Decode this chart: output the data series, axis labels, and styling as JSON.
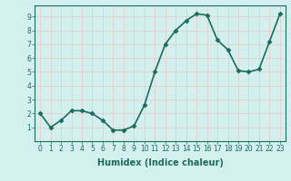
{
  "x": [
    0,
    1,
    2,
    3,
    4,
    5,
    6,
    7,
    8,
    9,
    10,
    11,
    12,
    13,
    14,
    15,
    16,
    17,
    18,
    19,
    20,
    21,
    22,
    23
  ],
  "y": [
    2,
    1,
    1.5,
    2.2,
    2.2,
    2,
    1.5,
    0.8,
    0.8,
    1.1,
    2.6,
    5,
    7,
    8,
    8.7,
    9.2,
    9.1,
    7.3,
    6.6,
    5.1,
    5,
    5.2,
    7.2,
    9.2
  ],
  "line_color": "#1a6b5e",
  "marker": "D",
  "marker_size": 2.5,
  "bg_color": "#d4f0ee",
  "grid_color": "#c8e8e4",
  "xlabel": "Humidex (Indice chaleur)",
  "xlim": [
    -0.5,
    23.5
  ],
  "ylim": [
    0,
    9.8
  ],
  "yticks": [
    1,
    2,
    3,
    4,
    5,
    6,
    7,
    8,
    9
  ],
  "xticks": [
    0,
    1,
    2,
    3,
    4,
    5,
    6,
    7,
    8,
    9,
    10,
    11,
    12,
    13,
    14,
    15,
    16,
    17,
    18,
    19,
    20,
    21,
    22,
    23
  ],
  "tick_label_fontsize": 5.5,
  "xlabel_fontsize": 7,
  "line_width": 1.2
}
